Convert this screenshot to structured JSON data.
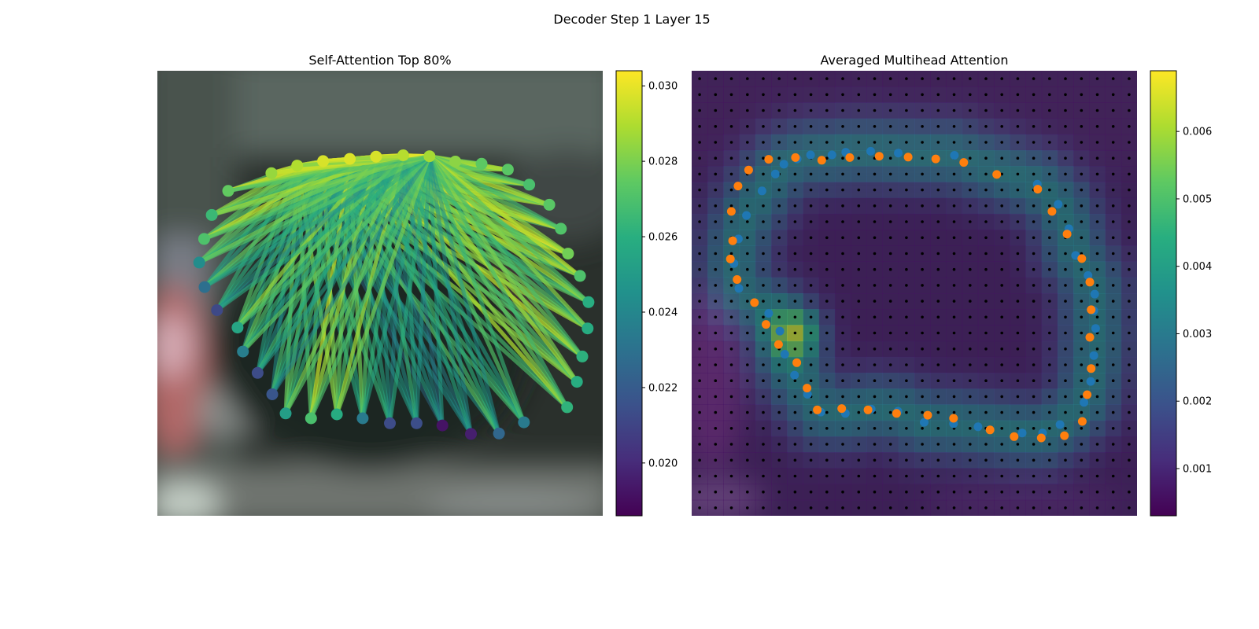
{
  "figure_title": "Decoder Step 1 Layer 15",
  "chart_data": [
    {
      "type": "scatter",
      "panel": "left",
      "title": "Self-Attention Top 80%",
      "xlabel": "",
      "ylabel": "",
      "background": "blurred photo",
      "axes_visible": false,
      "colormap": "viridis",
      "colorbar": {
        "range": [
          0.0186,
          0.0304
        ],
        "ticks": [
          0.02,
          0.022,
          0.024,
          0.026,
          0.028,
          0.03
        ],
        "tick_labels": [
          "0.020",
          "0.022",
          "0.024",
          "0.026",
          "0.028",
          "0.030"
        ]
      },
      "nodes": [
        {
          "x": 0.256,
          "y": 0.23,
          "v": 0.0285
        },
        {
          "x": 0.314,
          "y": 0.213,
          "v": 0.029
        },
        {
          "x": 0.372,
          "y": 0.203,
          "v": 0.0297
        },
        {
          "x": 0.432,
          "y": 0.198,
          "v": 0.0298
        },
        {
          "x": 0.491,
          "y": 0.193,
          "v": 0.0297
        },
        {
          "x": 0.552,
          "y": 0.19,
          "v": 0.0291
        },
        {
          "x": 0.611,
          "y": 0.192,
          "v": 0.0288
        },
        {
          "x": 0.669,
          "y": 0.204,
          "v": 0.0283
        },
        {
          "x": 0.728,
          "y": 0.209,
          "v": 0.0274
        },
        {
          "x": 0.787,
          "y": 0.222,
          "v": 0.0273
        },
        {
          "x": 0.835,
          "y": 0.256,
          "v": 0.0269
        },
        {
          "x": 0.88,
          "y": 0.301,
          "v": 0.0273
        },
        {
          "x": 0.906,
          "y": 0.355,
          "v": 0.0271
        },
        {
          "x": 0.922,
          "y": 0.411,
          "v": 0.0278
        },
        {
          "x": 0.949,
          "y": 0.461,
          "v": 0.027
        },
        {
          "x": 0.968,
          "y": 0.52,
          "v": 0.0259
        },
        {
          "x": 0.966,
          "y": 0.579,
          "v": 0.0258
        },
        {
          "x": 0.954,
          "y": 0.642,
          "v": 0.0261
        },
        {
          "x": 0.942,
          "y": 0.699,
          "v": 0.0259
        },
        {
          "x": 0.92,
          "y": 0.756,
          "v": 0.0262
        },
        {
          "x": 0.823,
          "y": 0.79,
          "v": 0.0234
        },
        {
          "x": 0.767,
          "y": 0.815,
          "v": 0.0225
        },
        {
          "x": 0.704,
          "y": 0.816,
          "v": 0.0196
        },
        {
          "x": 0.64,
          "y": 0.797,
          "v": 0.0192
        },
        {
          "x": 0.582,
          "y": 0.792,
          "v": 0.0214
        },
        {
          "x": 0.522,
          "y": 0.792,
          "v": 0.0213
        },
        {
          "x": 0.461,
          "y": 0.781,
          "v": 0.0234
        },
        {
          "x": 0.403,
          "y": 0.772,
          "v": 0.0258
        },
        {
          "x": 0.345,
          "y": 0.781,
          "v": 0.0269
        },
        {
          "x": 0.288,
          "y": 0.77,
          "v": 0.0251
        },
        {
          "x": 0.258,
          "y": 0.727,
          "v": 0.0217
        },
        {
          "x": 0.225,
          "y": 0.679,
          "v": 0.0213
        },
        {
          "x": 0.192,
          "y": 0.631,
          "v": 0.0236
        },
        {
          "x": 0.18,
          "y": 0.577,
          "v": 0.0255
        },
        {
          "x": 0.134,
          "y": 0.538,
          "v": 0.0212
        },
        {
          "x": 0.106,
          "y": 0.486,
          "v": 0.0229
        },
        {
          "x": 0.094,
          "y": 0.431,
          "v": 0.0243
        },
        {
          "x": 0.105,
          "y": 0.378,
          "v": 0.027
        },
        {
          "x": 0.122,
          "y": 0.324,
          "v": 0.0265
        },
        {
          "x": 0.159,
          "y": 0.27,
          "v": 0.0275
        }
      ],
      "edge_sources": [
        1,
        2,
        3,
        4,
        5,
        6
      ],
      "edge_targets_all": true
    },
    {
      "type": "heatmap",
      "panel": "right",
      "title": "Averaged Multihead Attention",
      "xlabel": "",
      "ylabel": "",
      "axes_visible": false,
      "colormap": "viridis",
      "grid": {
        "cols": 28,
        "rows": 28
      },
      "colorbar": {
        "range": [
          0.0003,
          0.0069
        ],
        "ticks": [
          0.001,
          0.002,
          0.003,
          0.004,
          0.005,
          0.006
        ],
        "tick_labels": [
          "0.001",
          "0.002",
          "0.003",
          "0.004",
          "0.005",
          "0.006"
        ]
      },
      "peak": {
        "col": 6.5,
        "row": 16.5,
        "value": 0.0068
      },
      "series": [
        {
          "color": "#1f77b4",
          "points": [
            [
              0.188,
              0.232
            ],
            [
              0.207,
              0.21
            ],
            [
              0.237,
              0.198
            ],
            [
              0.267,
              0.189
            ],
            [
              0.315,
              0.189
            ],
            [
              0.346,
              0.183
            ],
            [
              0.402,
              0.181
            ],
            [
              0.464,
              0.185
            ],
            [
              0.59,
              0.19
            ],
            [
              0.776,
              0.255
            ],
            [
              0.823,
              0.3
            ],
            [
              0.847,
              0.355
            ],
            [
              0.862,
              0.415
            ],
            [
              0.89,
              0.46
            ],
            [
              0.905,
              0.502
            ],
            [
              0.903,
              0.539
            ],
            [
              0.907,
              0.579
            ],
            [
              0.903,
              0.64
            ],
            [
              0.896,
              0.698
            ],
            [
              0.881,
              0.745
            ],
            [
              0.827,
              0.795
            ],
            [
              0.788,
              0.814
            ],
            [
              0.742,
              0.814
            ],
            [
              0.643,
              0.8
            ],
            [
              0.588,
              0.793
            ],
            [
              0.522,
              0.79
            ],
            [
              0.463,
              0.765
            ],
            [
              0.403,
              0.76
            ],
            [
              0.345,
              0.77
            ],
            [
              0.29,
              0.767
            ],
            [
              0.26,
              0.727
            ],
            [
              0.231,
              0.684
            ],
            [
              0.209,
              0.637
            ],
            [
              0.198,
              0.585
            ],
            [
              0.173,
              0.545
            ],
            [
              0.106,
              0.489
            ],
            [
              0.095,
              0.433
            ],
            [
              0.105,
              0.378
            ],
            [
              0.123,
              0.325
            ],
            [
              0.158,
              0.27
            ]
          ]
        },
        {
          "color": "#ff7f0e",
          "points": [
            [
              0.089,
              0.316
            ],
            [
              0.104,
              0.259
            ],
            [
              0.128,
              0.223
            ],
            [
              0.173,
              0.199
            ],
            [
              0.233,
              0.195
            ],
            [
              0.292,
              0.201
            ],
            [
              0.355,
              0.195
            ],
            [
              0.421,
              0.192
            ],
            [
              0.486,
              0.194
            ],
            [
              0.548,
              0.198
            ],
            [
              0.611,
              0.206
            ],
            [
              0.685,
              0.233
            ],
            [
              0.777,
              0.266
            ],
            [
              0.809,
              0.316
            ],
            [
              0.843,
              0.367
            ],
            [
              0.876,
              0.422
            ],
            [
              0.894,
              0.475
            ],
            [
              0.897,
              0.537
            ],
            [
              0.894,
              0.599
            ],
            [
              0.897,
              0.669
            ],
            [
              0.888,
              0.728
            ],
            [
              0.877,
              0.788
            ],
            [
              0.837,
              0.82
            ],
            [
              0.785,
              0.825
            ],
            [
              0.724,
              0.822
            ],
            [
              0.67,
              0.807
            ],
            [
              0.588,
              0.781
            ],
            [
              0.53,
              0.774
            ],
            [
              0.46,
              0.77
            ],
            [
              0.396,
              0.762
            ],
            [
              0.337,
              0.759
            ],
            [
              0.282,
              0.762
            ],
            [
              0.259,
              0.713
            ],
            [
              0.236,
              0.656
            ],
            [
              0.195,
              0.615
            ],
            [
              0.167,
              0.57
            ],
            [
              0.141,
              0.521
            ],
            [
              0.102,
              0.469
            ],
            [
              0.087,
              0.423
            ],
            [
              0.092,
              0.382
            ]
          ]
        }
      ]
    }
  ]
}
